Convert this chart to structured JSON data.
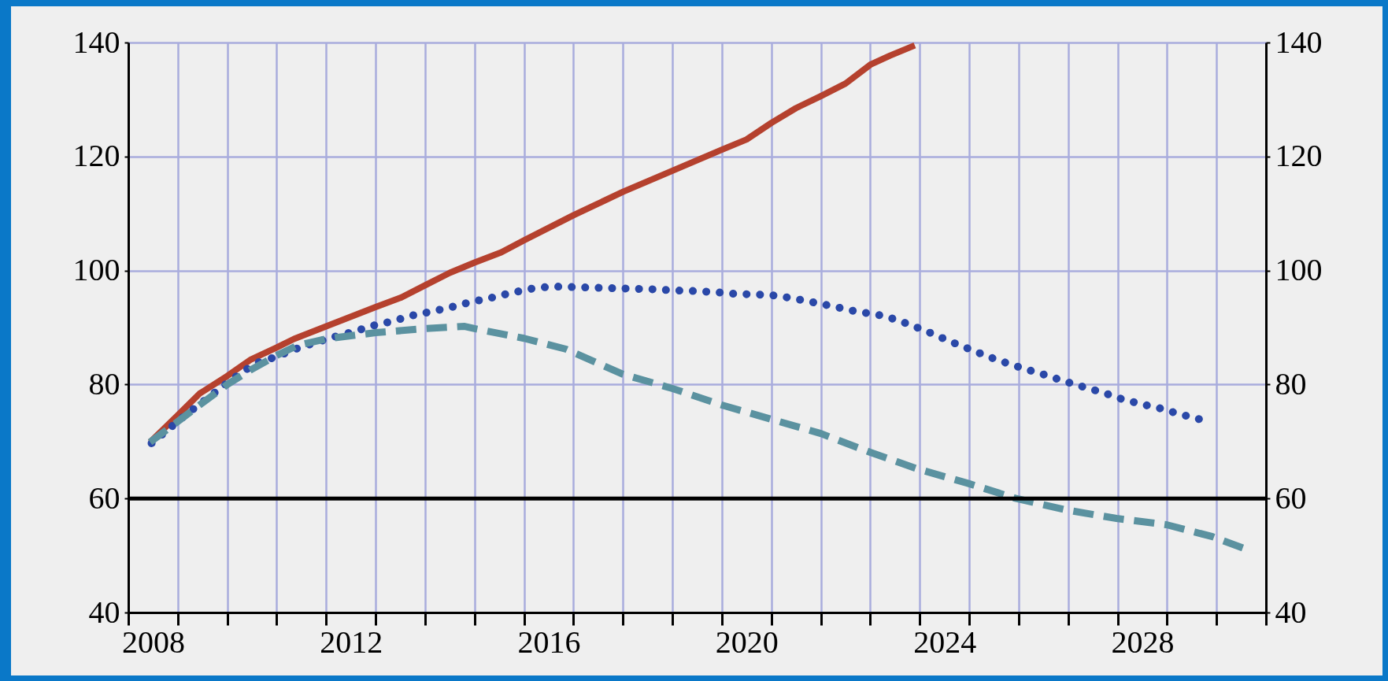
{
  "chart_data": {
    "type": "line",
    "grid": true,
    "xlim": [
      2008,
      2031
    ],
    "xticks": [
      {
        "value": 2008,
        "label": null
      },
      {
        "value": 2008.5,
        "label": "2008"
      },
      {
        "value": 2009,
        "label": null
      },
      {
        "value": 2010,
        "label": null
      },
      {
        "value": 2011,
        "label": null
      },
      {
        "value": 2012,
        "label": null
      },
      {
        "value": 2012.5,
        "label": "2012"
      },
      {
        "value": 2013,
        "label": null
      },
      {
        "value": 2014,
        "label": null
      },
      {
        "value": 2015,
        "label": null
      },
      {
        "value": 2016,
        "label": null
      },
      {
        "value": 2016.5,
        "label": "2016"
      },
      {
        "value": 2017,
        "label": null
      },
      {
        "value": 2018,
        "label": null
      },
      {
        "value": 2019,
        "label": null
      },
      {
        "value": 2020,
        "label": null
      },
      {
        "value": 2020.5,
        "label": "2020"
      },
      {
        "value": 2021,
        "label": null
      },
      {
        "value": 2022,
        "label": null
      },
      {
        "value": 2023,
        "label": null
      },
      {
        "value": 2024,
        "label": null
      },
      {
        "value": 2024.5,
        "label": "2024"
      },
      {
        "value": 2025,
        "label": null
      },
      {
        "value": 2026,
        "label": null
      },
      {
        "value": 2027,
        "label": null
      },
      {
        "value": 2028,
        "label": null
      },
      {
        "value": 2028.5,
        "label": "2028"
      },
      {
        "value": 2029,
        "label": null
      },
      {
        "value": 2030,
        "label": null
      },
      {
        "value": 2031,
        "label": null
      }
    ],
    "ylim": [
      40,
      140
    ],
    "yticks": [
      40,
      60,
      80,
      100,
      120,
      140
    ],
    "y2lim": [
      40,
      140
    ],
    "y2ticks": [
      40,
      60,
      80,
      100,
      120,
      140
    ],
    "ref_lines": [
      {
        "axis": "y",
        "value": 60,
        "color": "#000000"
      }
    ],
    "series": [
      {
        "color": "#b5412e",
        "line_style": "solid",
        "x": [
          2008.44,
          2009,
          2009.44,
          2010,
          2010.48,
          2011,
          2011.35,
          2012,
          2013,
          2013.5,
          2014,
          2014.5,
          2015,
          2015.54,
          2016,
          2017,
          2018,
          2019,
          2020,
          2020.5,
          2021,
          2021.5,
          2022,
          2022.5,
          2023,
          2023.4,
          2023.9
        ],
        "values": [
          69.9,
          74.6,
          78.4,
          81.5,
          84.4,
          86.5,
          88,
          90.2,
          93.6,
          95.2,
          97.4,
          99.6,
          101.4,
          103.2,
          105.3,
          109.7,
          113.8,
          117.5,
          121.2,
          123,
          125.9,
          128.5,
          130.6,
          132.8,
          136.1,
          137.7,
          139.5
        ]
      },
      {
        "color": "#2a48a8",
        "line_style": "dotted",
        "x": [
          2008.47,
          2008.75,
          2009.05,
          2009.36,
          2009.66,
          2009.96,
          2010.27,
          2010.6,
          2011,
          2011.37,
          2011.76,
          2012.14,
          2012.53,
          2012.93,
          2013.34,
          2013.73,
          2014.13,
          2014.54,
          2014.94,
          2015.33,
          2015.75,
          2016.15,
          2016.55,
          2016.97,
          2017.38,
          2017.8,
          2018.21,
          2018.63,
          2019.05,
          2019.45,
          2019.88,
          2020.29,
          2020.7,
          2021.1,
          2021.51,
          2021.92,
          2022.31,
          2022.72,
          2023.13,
          2023.52,
          2023.89,
          2024.26,
          2024.63,
          2025.01,
          2025.38,
          2025.75,
          2026.14,
          2026.53,
          2026.92,
          2027.3,
          2027.7,
          2028.07,
          2028.46,
          2028.87,
          2029.26,
          2029.66
        ],
        "values": [
          69.7,
          71.7,
          73.9,
          76,
          78,
          80,
          82,
          83.8,
          84.9,
          86.2,
          87.3,
          88.3,
          89.2,
          90.3,
          91.1,
          92.1,
          92.8,
          93.6,
          94.5,
          95.2,
          96.1,
          96.8,
          97.2,
          97.1,
          97,
          96.9,
          96.8,
          96.7,
          96.5,
          96.4,
          96.2,
          95.9,
          95.8,
          95.6,
          95,
          94.3,
          93.6,
          92.8,
          92.3,
          91.4,
          90.2,
          88.9,
          87.5,
          86.2,
          84.9,
          83.8,
          82.7,
          81.7,
          80.6,
          79.6,
          78.6,
          77.5,
          76.6,
          75.8,
          74.8,
          73.9
        ]
      },
      {
        "color": "#5b92a0",
        "line_style": "dashed",
        "x": [
          2008.44,
          2009,
          2009.44,
          2010,
          2010.48,
          2011,
          2011.43,
          2012,
          2013,
          2014,
          2014.8,
          2015,
          2016,
          2016.85,
          2018,
          2018.84,
          2019,
          2020,
          2021,
          2022,
          2023,
          2023.95,
          2024.96,
          2025.95,
          2026.96,
          2027.98,
          2028.99,
          2029.92,
          2030.54
        ],
        "values": [
          69.9,
          73.5,
          76.4,
          80,
          82.6,
          85.1,
          86.9,
          88,
          89.1,
          89.8,
          90.2,
          89.8,
          88.1,
          86.2,
          81.8,
          79.7,
          79.3,
          76.4,
          73.9,
          71.4,
          68.1,
          65.2,
          62.7,
          60,
          58,
          56.5,
          55.4,
          53.3,
          51.3
        ]
      }
    ]
  }
}
